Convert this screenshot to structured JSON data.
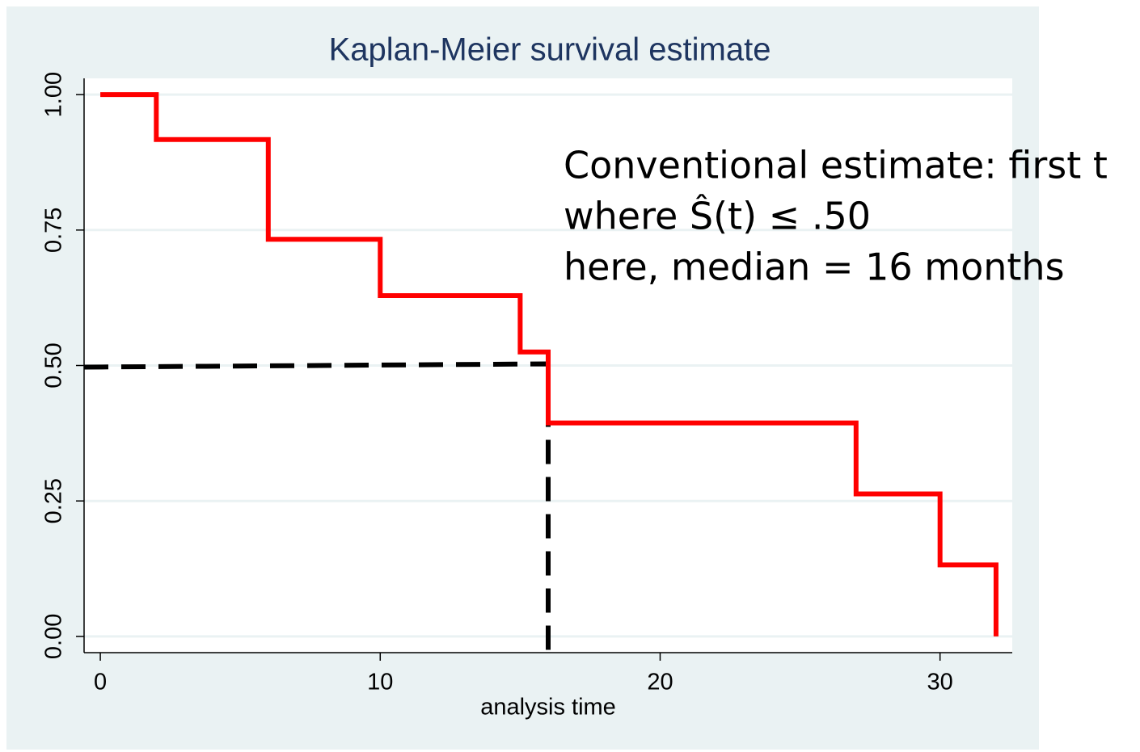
{
  "chart_data": {
    "type": "step",
    "title": "Kaplan-Meier survival estimate",
    "x_label": "analysis time",
    "x": [
      0,
      2,
      6,
      10,
      15,
      16,
      27,
      30,
      32
    ],
    "values": [
      1,
      0.917,
      0.733,
      0.629,
      0.525,
      0.394,
      0.263,
      0.132,
      0
    ],
    "color": "#ff0000",
    "xlim": [
      -0.58,
      32.58
    ],
    "ylim": [
      -0.03,
      1.03
    ],
    "xticks": [
      0,
      10,
      20,
      30
    ],
    "yticks": [
      {
        "value": 0,
        "label": "0.00"
      },
      {
        "value": 0.25,
        "label": "0.25"
      },
      {
        "value": 0.5,
        "label": "0.50"
      },
      {
        "value": 0.75,
        "label": "0.75"
      },
      {
        "value": 1,
        "label": "1.00"
      }
    ],
    "grid": true,
    "median_line": {
      "x": 16,
      "y": 0.5,
      "color": "#000000"
    },
    "annotation": [
      "Conventional estimate: first t",
      "where Ŝ(t) ≤ .50",
      "here, median = 16 months"
    ]
  }
}
